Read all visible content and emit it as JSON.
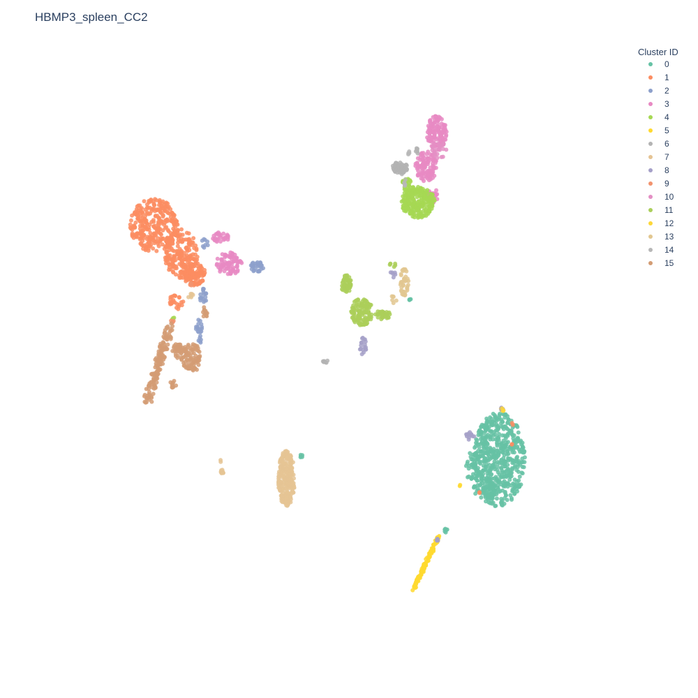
{
  "chart_data": {
    "type": "scatter",
    "title": "HBMP3_spleen_CC2",
    "xlabel": "",
    "ylabel": "",
    "grid": false,
    "axes_visible": false,
    "xlim": [
      0,
      100
    ],
    "ylim": [
      0,
      100
    ],
    "legend": {
      "title": "Cluster ID",
      "placement": "top-right"
    },
    "series": [
      {
        "name": "0",
        "color": "#66c2a5",
        "blobs": [
          {
            "cx": 79.4,
            "cy": 33.5,
            "rx": 4.6,
            "ry": 7.5,
            "n": 560
          },
          {
            "cx": 76.8,
            "cy": 28.8,
            "rx": 2.0,
            "ry": 2.0,
            "n": 40
          },
          {
            "cx": 74.7,
            "cy": 32.2,
            "rx": 1.3,
            "ry": 2.6,
            "n": 40
          },
          {
            "cx": 69.7,
            "cy": 22.2,
            "rx": 0.6,
            "ry": 0.3,
            "n": 6
          },
          {
            "cx": 44.0,
            "cy": 34.1,
            "rx": 0.3,
            "ry": 0.3,
            "n": 5
          },
          {
            "cx": 63.4,
            "cy": 59.1,
            "rx": 0.2,
            "ry": 0.3,
            "n": 4
          }
        ]
      },
      {
        "name": "1",
        "color": "#fc8d62",
        "blobs": [
          {
            "cx": 17.6,
            "cy": 70.8,
            "rx": 4.4,
            "ry": 4.2,
            "n": 300
          },
          {
            "cx": 22.4,
            "cy": 66.3,
            "rx": 3.0,
            "ry": 4.0,
            "n": 200
          },
          {
            "cx": 24.8,
            "cy": 63.0,
            "rx": 2.0,
            "ry": 1.8,
            "n": 110
          },
          {
            "cx": 21.5,
            "cy": 58.6,
            "rx": 1.3,
            "ry": 1.2,
            "n": 25
          },
          {
            "cx": 76.0,
            "cy": 28.2,
            "rx": 0.2,
            "ry": 0.2,
            "n": 2
          },
          {
            "cx": 81.8,
            "cy": 39.2,
            "rx": 0.2,
            "ry": 0.2,
            "n": 2
          },
          {
            "cx": 81.8,
            "cy": 36.0,
            "rx": 0.2,
            "ry": 0.2,
            "n": 2
          },
          {
            "cx": 60.8,
            "cy": 79.6,
            "rx": 0.2,
            "ry": 0.2,
            "n": 2
          }
        ]
      },
      {
        "name": "2",
        "color": "#8da0cb",
        "blobs": [
          {
            "cx": 36.0,
            "cy": 64.2,
            "rx": 1.2,
            "ry": 0.8,
            "n": 30
          },
          {
            "cx": 26.4,
            "cy": 59.5,
            "rx": 0.6,
            "ry": 1.2,
            "n": 18
          },
          {
            "cx": 25.6,
            "cy": 53.8,
            "rx": 0.6,
            "ry": 2.0,
            "n": 22
          },
          {
            "cx": 26.6,
            "cy": 68.0,
            "rx": 0.8,
            "ry": 0.8,
            "n": 8
          }
        ]
      },
      {
        "name": "3",
        "color": "#e78ac3",
        "blobs": [
          {
            "cx": 68.2,
            "cy": 85.6,
            "rx": 1.8,
            "ry": 2.6,
            "n": 120
          },
          {
            "cx": 66.3,
            "cy": 80.2,
            "rx": 2.0,
            "ry": 2.4,
            "n": 110
          },
          {
            "cx": 31.0,
            "cy": 64.7,
            "rx": 2.4,
            "ry": 1.8,
            "n": 80
          },
          {
            "cx": 29.5,
            "cy": 68.9,
            "rx": 1.5,
            "ry": 0.8,
            "n": 30
          },
          {
            "cx": 67.5,
            "cy": 75.5,
            "rx": 1.0,
            "ry": 1.2,
            "n": 20
          }
        ]
      },
      {
        "name": "4",
        "color": "#a6d854",
        "blobs": [
          {
            "cx": 64.9,
            "cy": 74.5,
            "rx": 3.0,
            "ry": 2.5,
            "n": 260
          },
          {
            "cx": 62.9,
            "cy": 77.4,
            "rx": 1.0,
            "ry": 1.0,
            "n": 25
          },
          {
            "cx": 21.0,
            "cy": 56.0,
            "rx": 0.3,
            "ry": 0.3,
            "n": 4
          }
        ]
      },
      {
        "name": "5",
        "color": "#ffd92f",
        "blobs": [
          {
            "type": "line",
            "x1": 64.0,
            "y1": 12.8,
            "x2": 68.6,
            "y2": 21.4,
            "n": 110,
            "spread": 0.25
          },
          {
            "cx": 72.3,
            "cy": 29.4,
            "rx": 0.2,
            "ry": 0.2,
            "n": 2
          },
          {
            "cx": 79.8,
            "cy": 41.5,
            "rx": 0.2,
            "ry": 0.3,
            "n": 2
          }
        ]
      },
      {
        "name": "6",
        "color": "#b3b3b3",
        "blobs": [
          {
            "cx": 61.6,
            "cy": 79.9,
            "rx": 1.4,
            "ry": 1.0,
            "n": 65
          },
          {
            "cx": 64.5,
            "cy": 82.6,
            "rx": 0.4,
            "ry": 0.6,
            "n": 8
          },
          {
            "cx": 48.3,
            "cy": 49.1,
            "rx": 0.6,
            "ry": 0.2,
            "n": 7
          }
        ]
      },
      {
        "name": "7",
        "color": "#e5c494",
        "blobs": [
          {
            "cx": 41.3,
            "cy": 30.5,
            "rx": 1.5,
            "ry": 4.5,
            "n": 260
          },
          {
            "cx": 29.8,
            "cy": 31.6,
            "rx": 0.4,
            "ry": 0.4,
            "n": 8
          },
          {
            "cx": 29.5,
            "cy": 33.3,
            "rx": 0.2,
            "ry": 0.2,
            "n": 2
          },
          {
            "cx": 24.2,
            "cy": 59.6,
            "rx": 0.5,
            "ry": 0.6,
            "n": 6
          }
        ]
      },
      {
        "name": "8",
        "color": "#a5a0c8",
        "blobs": [
          {
            "cx": 55.0,
            "cy": 51.6,
            "rx": 0.6,
            "ry": 1.4,
            "n": 18
          },
          {
            "cx": 74.2,
            "cy": 37.3,
            "rx": 0.9,
            "ry": 0.7,
            "n": 12
          },
          {
            "cx": 68.1,
            "cy": 20.6,
            "rx": 0.4,
            "ry": 0.4,
            "n": 6
          },
          {
            "cx": 60.3,
            "cy": 62.9,
            "rx": 0.6,
            "ry": 0.6,
            "n": 6
          },
          {
            "cx": 79.8,
            "cy": 41.5,
            "rx": 0.3,
            "ry": 0.3,
            "n": 3
          }
        ]
      },
      {
        "name": "9",
        "color": "#f2936e",
        "blobs": [
          {
            "cx": 20.8,
            "cy": 55.6,
            "rx": 0.4,
            "ry": 0.4,
            "n": 4
          },
          {
            "cx": 24.4,
            "cy": 61.5,
            "rx": 0.3,
            "ry": 0.3,
            "n": 3
          }
        ]
      },
      {
        "name": "10",
        "color": "#e48fc4",
        "blobs": [
          {
            "cx": 68.6,
            "cy": 82.9,
            "rx": 1.4,
            "ry": 1.4,
            "n": 25
          }
        ]
      },
      {
        "name": "11",
        "color": "#abcf5b",
        "blobs": [
          {
            "cx": 54.8,
            "cy": 57.0,
            "rx": 2.0,
            "ry": 2.2,
            "n": 130
          },
          {
            "cx": 52.0,
            "cy": 61.5,
            "rx": 1.0,
            "ry": 1.4,
            "n": 45
          },
          {
            "cx": 58.5,
            "cy": 56.6,
            "rx": 1.6,
            "ry": 0.8,
            "n": 35
          },
          {
            "cx": 60.5,
            "cy": 64.5,
            "rx": 0.7,
            "ry": 0.7,
            "n": 6
          }
        ]
      },
      {
        "name": "12",
        "color": "#fdd738",
        "blobs": [
          {
            "cx": 80.0,
            "cy": 41.4,
            "rx": 0.2,
            "ry": 0.3,
            "n": 3
          }
        ]
      },
      {
        "name": "13",
        "color": "#e2c790",
        "blobs": [
          {
            "cx": 62.4,
            "cy": 61.8,
            "rx": 0.8,
            "ry": 2.3,
            "n": 40
          },
          {
            "cx": 60.5,
            "cy": 59.0,
            "rx": 0.5,
            "ry": 0.7,
            "n": 6
          }
        ]
      },
      {
        "name": "14",
        "color": "#b7b7b7",
        "blobs": [
          {
            "cx": 62.5,
            "cy": 77.5,
            "rx": 0.4,
            "ry": 0.6,
            "n": 5
          },
          {
            "cx": 63.2,
            "cy": 82.5,
            "rx": 0.3,
            "ry": 0.5,
            "n": 4
          }
        ]
      },
      {
        "name": "15",
        "color": "#d39c74",
        "blobs": [
          {
            "type": "line",
            "x1": 16.4,
            "y1": 42.8,
            "x2": 20.4,
            "y2": 54.8,
            "n": 150,
            "spread": 0.7
          },
          {
            "cx": 24.2,
            "cy": 49.7,
            "rx": 1.8,
            "ry": 2.4,
            "n": 90
          },
          {
            "cx": 21.8,
            "cy": 50.8,
            "rx": 1.0,
            "ry": 1.2,
            "n": 30
          },
          {
            "cx": 26.8,
            "cy": 57.0,
            "rx": 0.5,
            "ry": 1.0,
            "n": 12
          },
          {
            "cx": 21.0,
            "cy": 45.5,
            "rx": 0.6,
            "ry": 0.6,
            "n": 10
          }
        ]
      }
    ]
  }
}
